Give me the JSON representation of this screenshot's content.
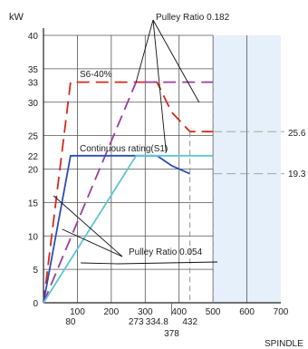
{
  "chart_data": {
    "type": "line",
    "ylabel": "kW",
    "xlabel": "SPINDLE",
    "xlim": [
      0,
      700
    ],
    "ylim": [
      0,
      40
    ],
    "x_ticks_top": [
      "100",
      "200",
      "300",
      "400",
      "500",
      "600",
      "700"
    ],
    "x_ticks_top_values": [
      100,
      200,
      300,
      400,
      500,
      600,
      700
    ],
    "x_ticks_bottom": [
      "80",
      "273",
      "334.8",
      "432"
    ],
    "x_ticks_bottom_values": [
      80,
      273,
      334.8,
      432
    ],
    "x_ticks_extra": [
      "378"
    ],
    "x_ticks_extra_values": [
      378
    ],
    "y_ticks": [
      "0",
      "5",
      "10",
      "15",
      "20",
      "22",
      "25",
      "30",
      "33",
      "35",
      "40"
    ],
    "y_ticks_values": [
      0,
      5,
      10,
      15,
      20,
      22,
      25,
      30,
      33,
      35,
      40
    ],
    "grid": true,
    "shaded_region_x": [
      500,
      700
    ],
    "annotations": {
      "pulley_high": "Pulley Ratio 0.182",
      "pulley_low": "Pulley Ratio  0.054",
      "s6": "S6-40%",
      "s1": "Continuous rating(S1)",
      "right_upper": "25.6",
      "right_lower": "19.3"
    },
    "series": [
      {
        "color": "#d42a1c",
        "dash": "long",
        "points": [
          [
            0,
            0
          ],
          [
            80,
            33
          ],
          [
            334.8,
            33
          ],
          [
            378,
            28.5
          ],
          [
            432,
            25.6
          ],
          [
            500,
            25.6
          ]
        ]
      },
      {
        "color": "#9c3d9c",
        "dash": "long",
        "points": [
          [
            0,
            0
          ],
          [
            273,
            33
          ],
          [
            500,
            33
          ]
        ]
      },
      {
        "color": "#2a4eb5",
        "dash": "solid",
        "points": [
          [
            0,
            0
          ],
          [
            80,
            22
          ],
          [
            334.8,
            22
          ],
          [
            378,
            20.5
          ],
          [
            432,
            19.3
          ]
        ]
      },
      {
        "color": "#5ec6d4",
        "dash": "solid",
        "points": [
          [
            0,
            0
          ],
          [
            273,
            22
          ],
          [
            500,
            22
          ]
        ]
      }
    ]
  }
}
